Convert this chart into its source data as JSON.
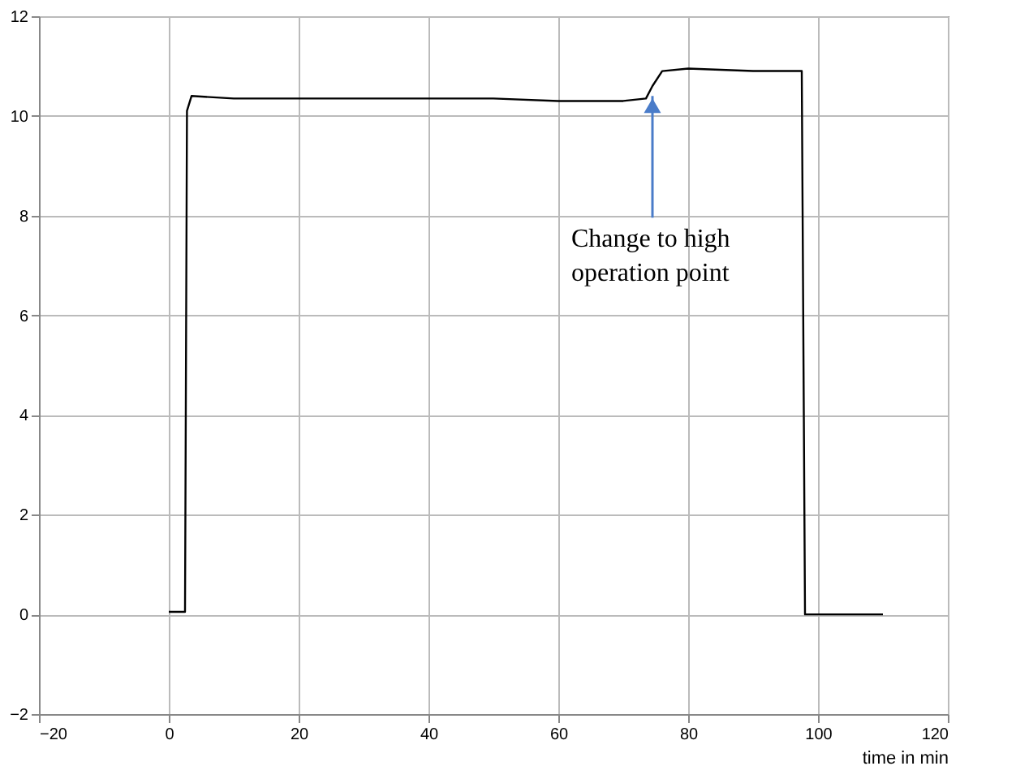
{
  "chart_data": {
    "type": "line",
    "xlabel": "time  in min",
    "x": [
      0,
      2.5,
      2.8,
      3.5,
      10,
      20,
      30,
      40,
      50,
      60,
      70,
      73.5,
      74.5,
      76,
      80,
      90,
      97.5,
      98,
      100,
      110
    ],
    "series": [
      {
        "color": "#000000",
        "values": [
          0.05,
          0.05,
          10.1,
          10.4,
          10.35,
          10.35,
          10.35,
          10.35,
          10.35,
          10.3,
          10.3,
          10.35,
          10.6,
          10.9,
          10.95,
          10.9,
          10.9,
          0,
          0,
          0
        ]
      }
    ],
    "xlim": [
      -20,
      120
    ],
    "xticks": [
      -20,
      0,
      20,
      40,
      60,
      80,
      100,
      120
    ],
    "ylim": [
      -2,
      12
    ],
    "yticks": [
      -2,
      0,
      2,
      4,
      6,
      8,
      10,
      12
    ],
    "grid": true,
    "marker": "none",
    "line_style": "solid",
    "annotations": [
      {
        "text": "Change to high\noperation point",
        "x": 74.5,
        "y": 10.4
      }
    ]
  }
}
